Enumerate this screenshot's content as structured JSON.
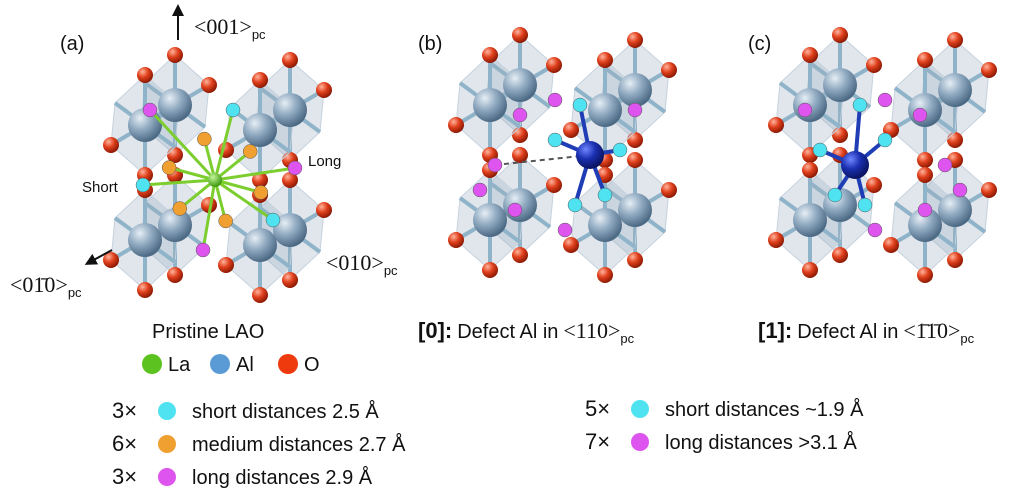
{
  "panels": [
    {
      "label": "(a)",
      "caption": {
        "text": "Pristine LAO"
      },
      "directions": [
        {
          "text": "<001>",
          "sub": "pc"
        },
        {
          "text": "<01̄0>",
          "sub": "pc"
        },
        {
          "text": "<010>",
          "sub": "pc"
        }
      ],
      "site_labels": [
        "Short",
        "Long"
      ]
    },
    {
      "label": "(b)",
      "caption": {
        "index": "[0]:",
        "text": "Defect Al in",
        "direction": "<110>",
        "sub": "pc"
      }
    },
    {
      "label": "(c)",
      "caption": {
        "index": "[1]:",
        "text": "Defect Al in",
        "direction": "<1̄1̄0>",
        "sub": "pc"
      }
    }
  ],
  "legend": [
    {
      "name": "La",
      "color": "#5cc21f"
    },
    {
      "name": "Al",
      "color": "#5b9bd5"
    },
    {
      "name": "O",
      "color": "#ee3a0c"
    }
  ],
  "distance_lists": [
    [
      {
        "count": "3×",
        "color": "#4fe3f2",
        "text": "short distances 2.5 Å"
      },
      {
        "count": "6×",
        "color": "#f0a030",
        "text": "medium distances 2.7 Å"
      },
      {
        "count": "3×",
        "color": "#dd55ee",
        "text": "long distances 2.9 Å"
      }
    ],
    [
      {
        "count": "5×",
        "color": "#4fe3f2",
        "text": "short distances ~1.9 Å"
      },
      {
        "count": "7×",
        "color": "#dd55ee",
        "text": "long distances >3.1 Å"
      }
    ]
  ]
}
